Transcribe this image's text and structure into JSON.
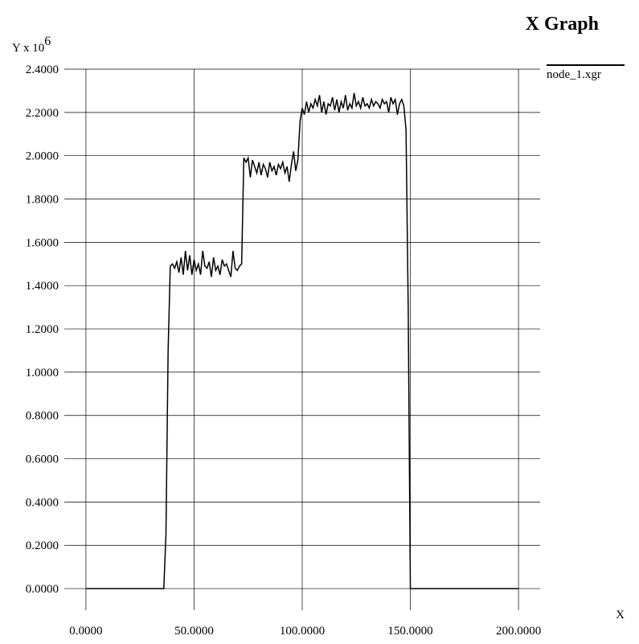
{
  "chart_data": {
    "type": "line",
    "title": "X Graph",
    "ylabel": {
      "text": "Y x 10",
      "exponent": "6"
    },
    "xlabel": "X",
    "series": [
      {
        "name": "node_1.xgr",
        "color": "#000000",
        "x": [
          0,
          36,
          37,
          38,
          39,
          40,
          41,
          42,
          43,
          44,
          45,
          46,
          47,
          48,
          49,
          50,
          51,
          52,
          53,
          54,
          55,
          56,
          57,
          58,
          59,
          60,
          61,
          62,
          63,
          64,
          65,
          66,
          67,
          68,
          69,
          70,
          71,
          72,
          73,
          74,
          75,
          76,
          77,
          78,
          79,
          80,
          81,
          82,
          83,
          84,
          85,
          86,
          87,
          88,
          89,
          90,
          91,
          92,
          93,
          94,
          95,
          96,
          97,
          98,
          99,
          100,
          101,
          102,
          103,
          104,
          105,
          106,
          107,
          108,
          109,
          110,
          111,
          112,
          113,
          114,
          115,
          116,
          117,
          118,
          119,
          120,
          121,
          122,
          123,
          124,
          125,
          126,
          127,
          128,
          129,
          130,
          131,
          132,
          133,
          134,
          135,
          136,
          137,
          138,
          139,
          140,
          141,
          142,
          143,
          144,
          145,
          146,
          147,
          148,
          149,
          150,
          200
        ],
        "values": [
          0,
          0,
          0.25,
          1.1,
          1.49,
          1.5,
          1.48,
          1.51,
          1.46,
          1.53,
          1.45,
          1.56,
          1.47,
          1.54,
          1.45,
          1.52,
          1.47,
          1.5,
          1.45,
          1.56,
          1.49,
          1.48,
          1.51,
          1.44,
          1.53,
          1.47,
          1.49,
          1.45,
          1.52,
          1.49,
          1.5,
          1.47,
          1.44,
          1.56,
          1.48,
          1.47,
          1.49,
          1.5,
          1.99,
          1.97,
          1.99,
          1.9,
          1.98,
          1.95,
          1.92,
          1.97,
          1.91,
          1.96,
          1.94,
          1.9,
          1.97,
          1.93,
          1.95,
          1.91,
          1.96,
          1.94,
          1.97,
          1.92,
          1.95,
          1.88,
          1.96,
          2.02,
          1.93,
          1.98,
          2.16,
          2.22,
          2.19,
          2.25,
          2.2,
          2.24,
          2.22,
          2.26,
          2.23,
          2.28,
          2.2,
          2.25,
          2.19,
          2.24,
          2.23,
          2.27,
          2.21,
          2.26,
          2.2,
          2.25,
          2.22,
          2.28,
          2.21,
          2.24,
          2.22,
          2.29,
          2.23,
          2.25,
          2.22,
          2.27,
          2.23,
          2.24,
          2.22,
          2.26,
          2.23,
          2.25,
          2.24,
          2.22,
          2.26,
          2.24,
          2.25,
          2.2,
          2.27,
          2.24,
          2.26,
          2.19,
          2.24,
          2.26,
          2.23,
          2.12,
          1.3,
          0,
          0
        ]
      }
    ],
    "xlim": [
      -10,
      210
    ],
    "ylim": [
      -0.1,
      2.4
    ],
    "xticks": [
      {
        "value": 0,
        "label": "0.0000"
      },
      {
        "value": 50,
        "label": "50.0000"
      },
      {
        "value": 100,
        "label": "100.0000"
      },
      {
        "value": 150,
        "label": "150.0000"
      },
      {
        "value": 200,
        "label": "200.0000"
      }
    ],
    "yticks": [
      {
        "value": 0,
        "label": "0.0000"
      },
      {
        "value": 0.2,
        "label": "0.2000"
      },
      {
        "value": 0.4,
        "label": "0.4000"
      },
      {
        "value": 0.6,
        "label": "0.6000"
      },
      {
        "value": 0.8,
        "label": "0.8000"
      },
      {
        "value": 1.0,
        "label": "1.0000"
      },
      {
        "value": 1.2,
        "label": "1.2000"
      },
      {
        "value": 1.4,
        "label": "1.4000"
      },
      {
        "value": 1.6,
        "label": "1.6000"
      },
      {
        "value": 1.8,
        "label": "1.8000"
      },
      {
        "value": 2.0,
        "label": "2.0000"
      },
      {
        "value": 2.2,
        "label": "2.2000"
      },
      {
        "value": 2.4,
        "label": "2.4000"
      }
    ],
    "grid": true
  }
}
